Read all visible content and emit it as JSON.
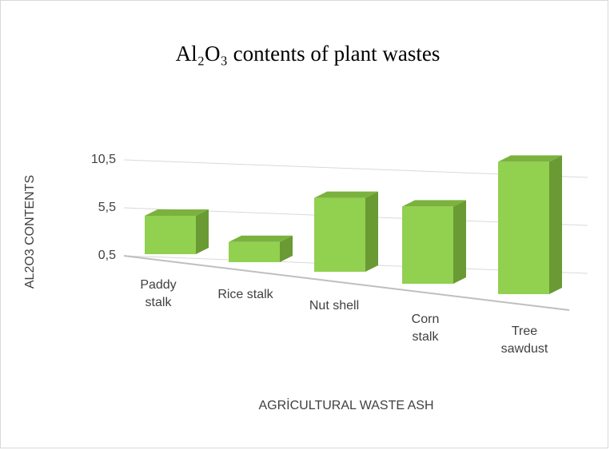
{
  "chart_data": {
    "type": "bar3d",
    "title": "Al₂O₃ contents of plant wastes",
    "x_label": "AGRİCULTURAL WASTE ASH",
    "y_label": "AL2O3 CONTENTS",
    "categories": [
      "Paddy stalk",
      "Rice stalk",
      "Nut shell",
      "Corn stalk",
      "Tree sawdust"
    ],
    "values": [
      4.5,
      2.5,
      7.5,
      7.5,
      12
    ],
    "color": "#92d050",
    "ylim": [
      0.5,
      10.5
    ],
    "yticks": [
      {
        "value": 0.5,
        "label": "0,5"
      },
      {
        "value": 5.5,
        "label": "5,5"
      },
      {
        "value": 10.5,
        "label": "10,5"
      }
    ],
    "grid": true
  }
}
